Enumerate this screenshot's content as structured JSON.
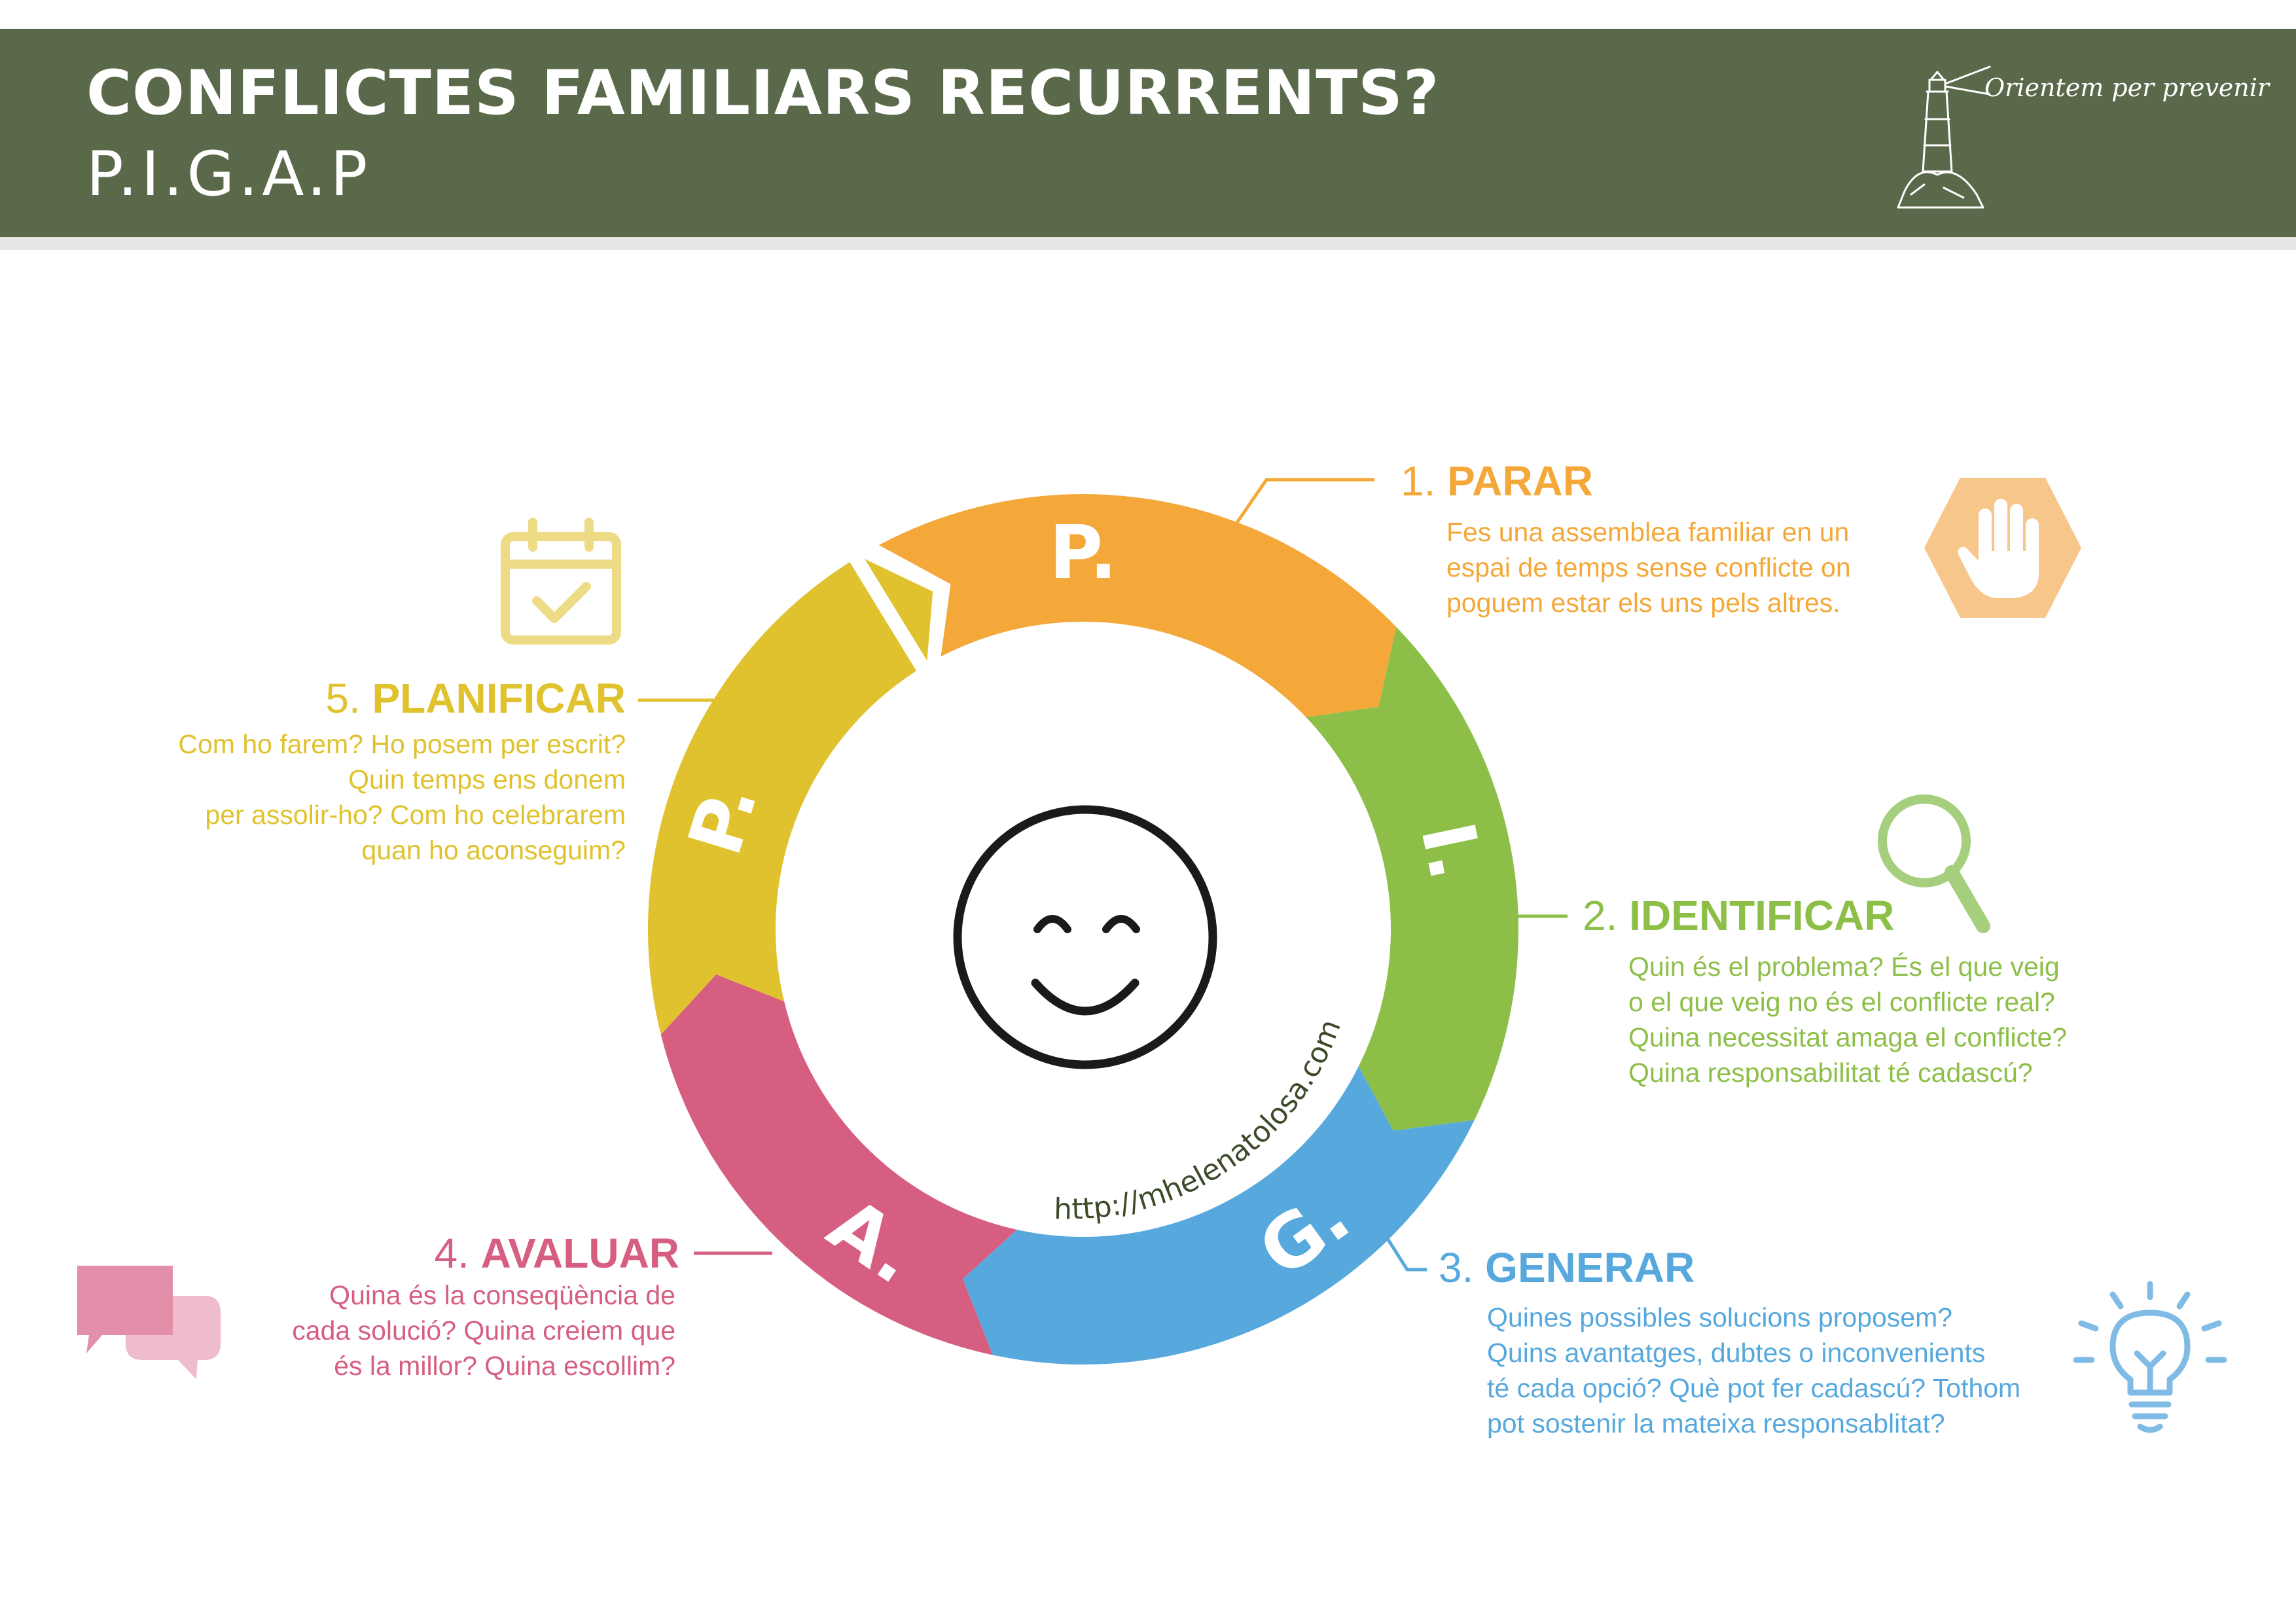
{
  "header": {
    "title": "CONFLICTES FAMILIARS RECURRENTS?",
    "subtitle": "P.I.G.A.P",
    "tagline": "Orientem per prevenir"
  },
  "colors": {
    "banner": "#5b694b",
    "parar": "#f4a83a",
    "identificar": "#8dbf48",
    "generar": "#57a9dd",
    "avaluar": "#d65f81",
    "planificar": "#e0c22e"
  },
  "wheel": {
    "letters": [
      "P.",
      "I.",
      "G.",
      "A.",
      "P."
    ],
    "url": "http://mhelenatolosa.com",
    "center_icon": "smiley-face-icon"
  },
  "steps": [
    {
      "number": "1.",
      "name": "PARAR",
      "icon": "stop-hand-icon",
      "lines": [
        "Fes una assemblea familiar en un",
        "espai de temps sense conflicte on",
        "poguem estar els uns pels altres."
      ]
    },
    {
      "number": "2.",
      "name": "IDENTIFICAR",
      "icon": "magnifier-icon",
      "lines": [
        "Quin és el problema? És el que veig",
        "o el que veig no és el conflicte real?",
        "Quina necessitat amaga el conflicte?",
        "Quina responsabilitat té cadascú?"
      ]
    },
    {
      "number": "3.",
      "name": "GENERAR",
      "icon": "lightbulb-icon",
      "lines": [
        "Quines possibles solucions proposem?",
        "Quins avantatges, dubtes o inconvenients",
        "té cada opció? Què pot fer cadascú? Tothom",
        "pot sostenir la mateixa responsablitat?"
      ]
    },
    {
      "number": "4.",
      "name": "AVALUAR",
      "icon": "speech-bubbles-icon",
      "lines": [
        "Quina és la conseqüència de",
        "cada solució? Quina creiem que",
        "és la millor? Quina escollim?"
      ]
    },
    {
      "number": "5.",
      "name": "PLANIFICAR",
      "icon": "calendar-check-icon",
      "lines": [
        "Com ho farem? Ho posem per escrit?",
        "Quin temps ens donem",
        "per assolir-ho? Com ho celebrarem",
        "quan ho aconseguim?"
      ]
    }
  ]
}
